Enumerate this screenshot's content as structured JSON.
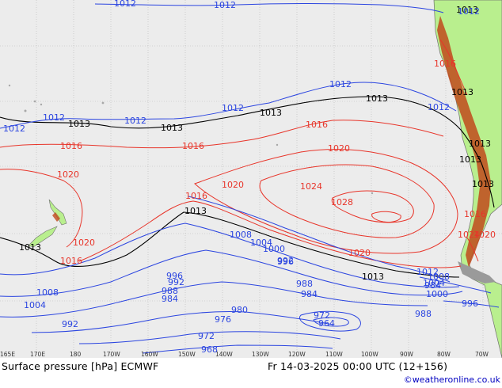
{
  "footer": {
    "title": "Surface pressure [hPa] ECMWF",
    "valid_time": "Fr 14-03-2025 00:00 UTC (12+156)",
    "credit": "©weatheronline.co.uk"
  },
  "longitude_ticks": [
    "165E",
    "170E",
    "180",
    "170W",
    "160W",
    "150W",
    "140W",
    "130W",
    "120W",
    "110W",
    "100W",
    "90W",
    "80W",
    "70W"
  ],
  "isobar_labels": {
    "black": [
      "1013",
      "1013",
      "1013",
      "1013",
      "1013",
      "1013",
      "1013",
      "1013",
      "1013",
      "1013",
      "1013",
      "1013"
    ],
    "red": [
      "1016",
      "1016",
      "1016",
      "1016",
      "1016",
      "1016",
      "1020",
      "1020",
      "1020",
      "1020",
      "1020",
      "1024",
      "1028",
      "1020",
      "1024",
      "1016"
    ],
    "blue": [
      "1012",
      "1012",
      "1012",
      "1012",
      "1012",
      "1012",
      "1012",
      "1012",
      "1012",
      "1012",
      "1008",
      "1008",
      "1004",
      "1004",
      "1000",
      "996",
      "992",
      "988",
      "984",
      "980",
      "976",
      "972",
      "968",
      "992",
      "988",
      "984",
      "988",
      "972",
      "964",
      "984",
      "1000",
      "1004",
      "1008",
      "996",
      "996",
      "992"
    ]
  },
  "colors": {
    "ocean": "#ececec",
    "land": "#b9ef8e",
    "high_terrain": "#c04a1c",
    "isobar_high": "#e8352a",
    "isobar_low": "#2b45e0",
    "isobar_reference": "#000000",
    "coast": "#8a8a8a"
  }
}
